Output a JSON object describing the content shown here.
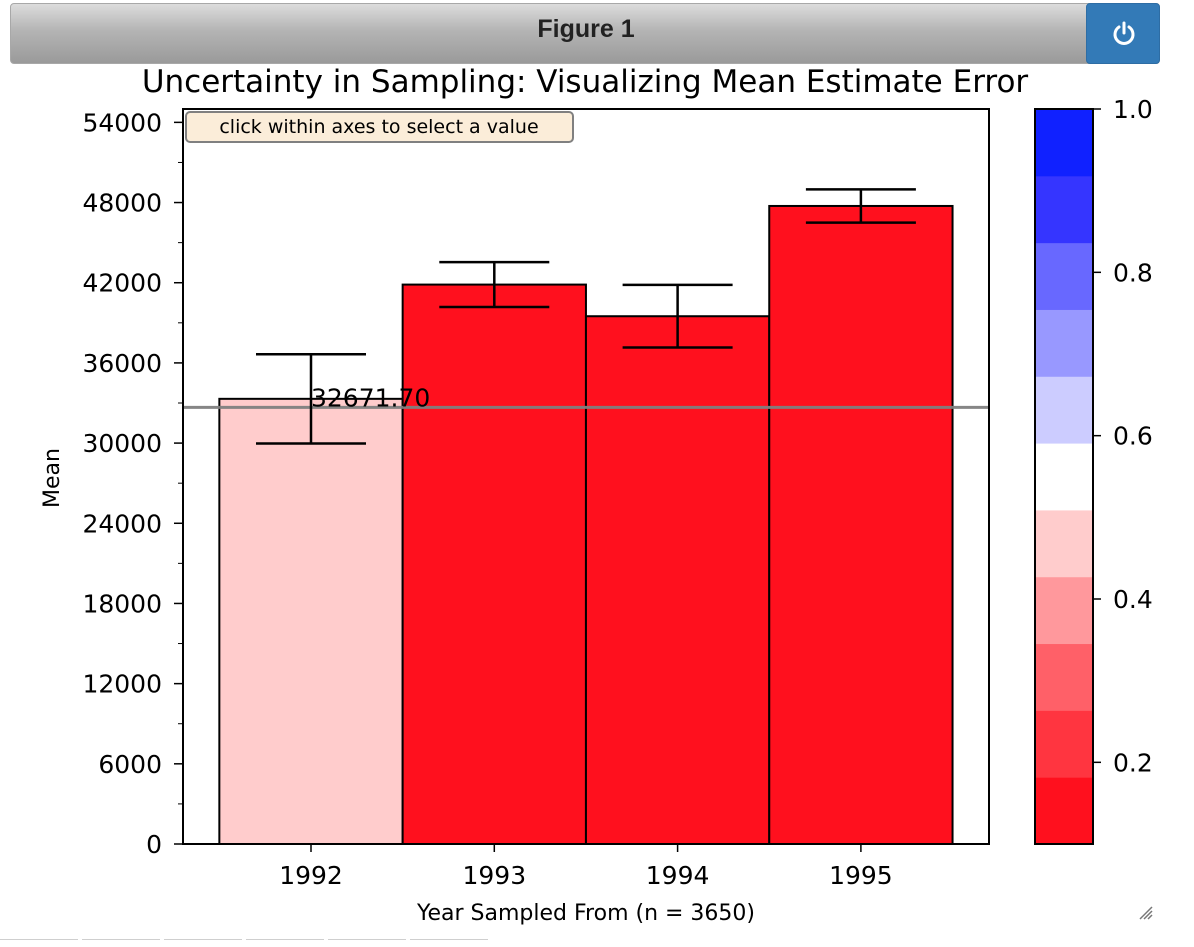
{
  "window": {
    "title": "Figure 1",
    "power_icon": "power-icon"
  },
  "chart_data": {
    "type": "bar",
    "title": "Uncertainty in Sampling: Visualizing Mean Estimate Error",
    "xlabel": "Year Sampled From (n = 3650)",
    "ylabel": "Mean",
    "categories": [
      "1992",
      "1993",
      "1994",
      "1995"
    ],
    "values": [
      33312,
      41861,
      39493,
      47744
    ],
    "error_low": [
      29970,
      40185,
      37150,
      46500
    ],
    "error_high": [
      36650,
      43540,
      41840,
      48990
    ],
    "bar_colors": [
      "#ffcccc",
      "#ff101e",
      "#ff101e",
      "#ff101e"
    ],
    "ylim": [
      0,
      55000
    ],
    "yticks": [
      0,
      6000,
      12000,
      18000,
      24000,
      30000,
      36000,
      42000,
      48000,
      54000
    ],
    "ytick_labels": [
      "0",
      "6000",
      "12000",
      "18000",
      "24000",
      "30000",
      "36000",
      "42000",
      "48000",
      "54000"
    ],
    "reference_line": {
      "value": 32671.7,
      "label": "32671.70",
      "color": "#808080"
    },
    "annotation": "click within axes to select a value",
    "grid": false,
    "colorbar": {
      "range": [
        0.1,
        1.0
      ],
      "ticks": [
        0.2,
        0.4,
        0.6,
        0.8,
        1.0
      ],
      "tick_labels": [
        "0.2",
        "0.4",
        "0.6",
        "0.8",
        "1.0"
      ],
      "colors": [
        "#ff101e",
        "#ff3540",
        "#ff6068",
        "#ff989c",
        "#ffcccc",
        "#ffffff",
        "#ccccff",
        "#9898ff",
        "#6868ff",
        "#3535ff",
        "#1021ff"
      ]
    }
  }
}
